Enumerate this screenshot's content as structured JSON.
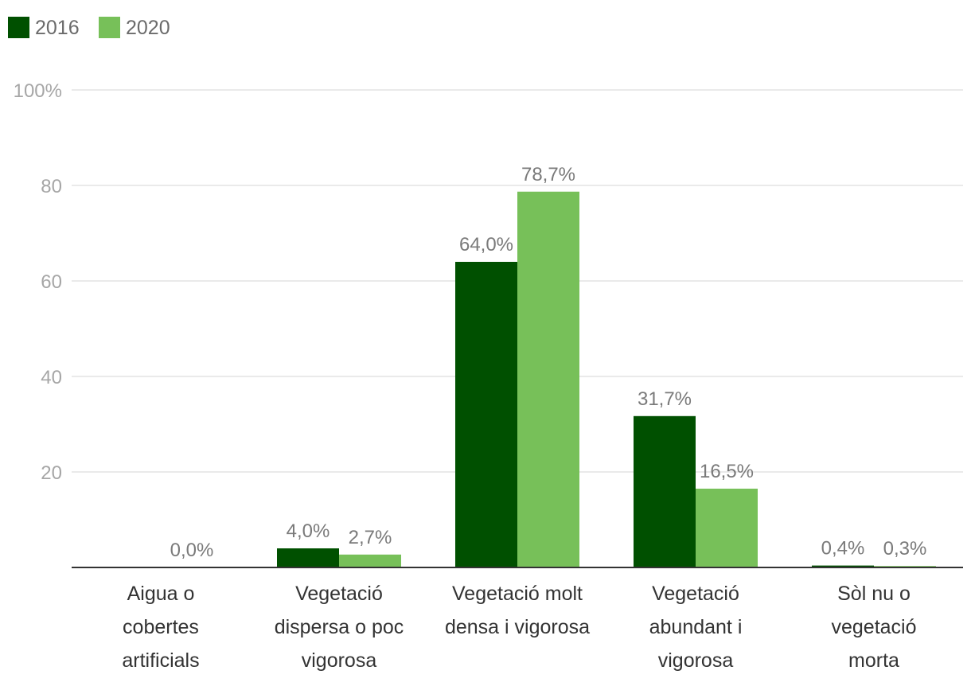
{
  "chart_data": {
    "type": "bar",
    "title": "",
    "xlabel": "",
    "ylabel": "",
    "ylim": [
      0,
      100
    ],
    "yticks": [
      {
        "value": 20,
        "label": "20"
      },
      {
        "value": 40,
        "label": "40"
      },
      {
        "value": 60,
        "label": "60"
      },
      {
        "value": 80,
        "label": "80"
      },
      {
        "value": 100,
        "label": "100%"
      }
    ],
    "grid": true,
    "legend_position": "top-left",
    "categories": [
      [
        "Aigua o",
        "cobertes",
        "artificials"
      ],
      [
        "Vegetació",
        "dispersa o poc",
        "vigorosa"
      ],
      [
        "Vegetació molt",
        "densa i vigorosa"
      ],
      [
        "Vegetació",
        "abundant i",
        "vigorosa"
      ],
      [
        "Sòl nu o",
        "vegetació",
        "morta"
      ]
    ],
    "series": [
      {
        "name": "2016",
        "color": "#005000",
        "values": [
          0.0,
          4.0,
          64.0,
          31.7,
          0.4
        ],
        "labels": [
          null,
          "4,0%",
          "64,0%",
          "31,7%",
          "0,4%"
        ]
      },
      {
        "name": "2020",
        "color": "#77c059",
        "values": [
          0.0,
          2.7,
          78.7,
          16.5,
          0.3
        ],
        "labels": [
          "0,0%",
          "2,7%",
          "78,7%",
          "16,5%",
          "0,3%"
        ]
      }
    ]
  }
}
